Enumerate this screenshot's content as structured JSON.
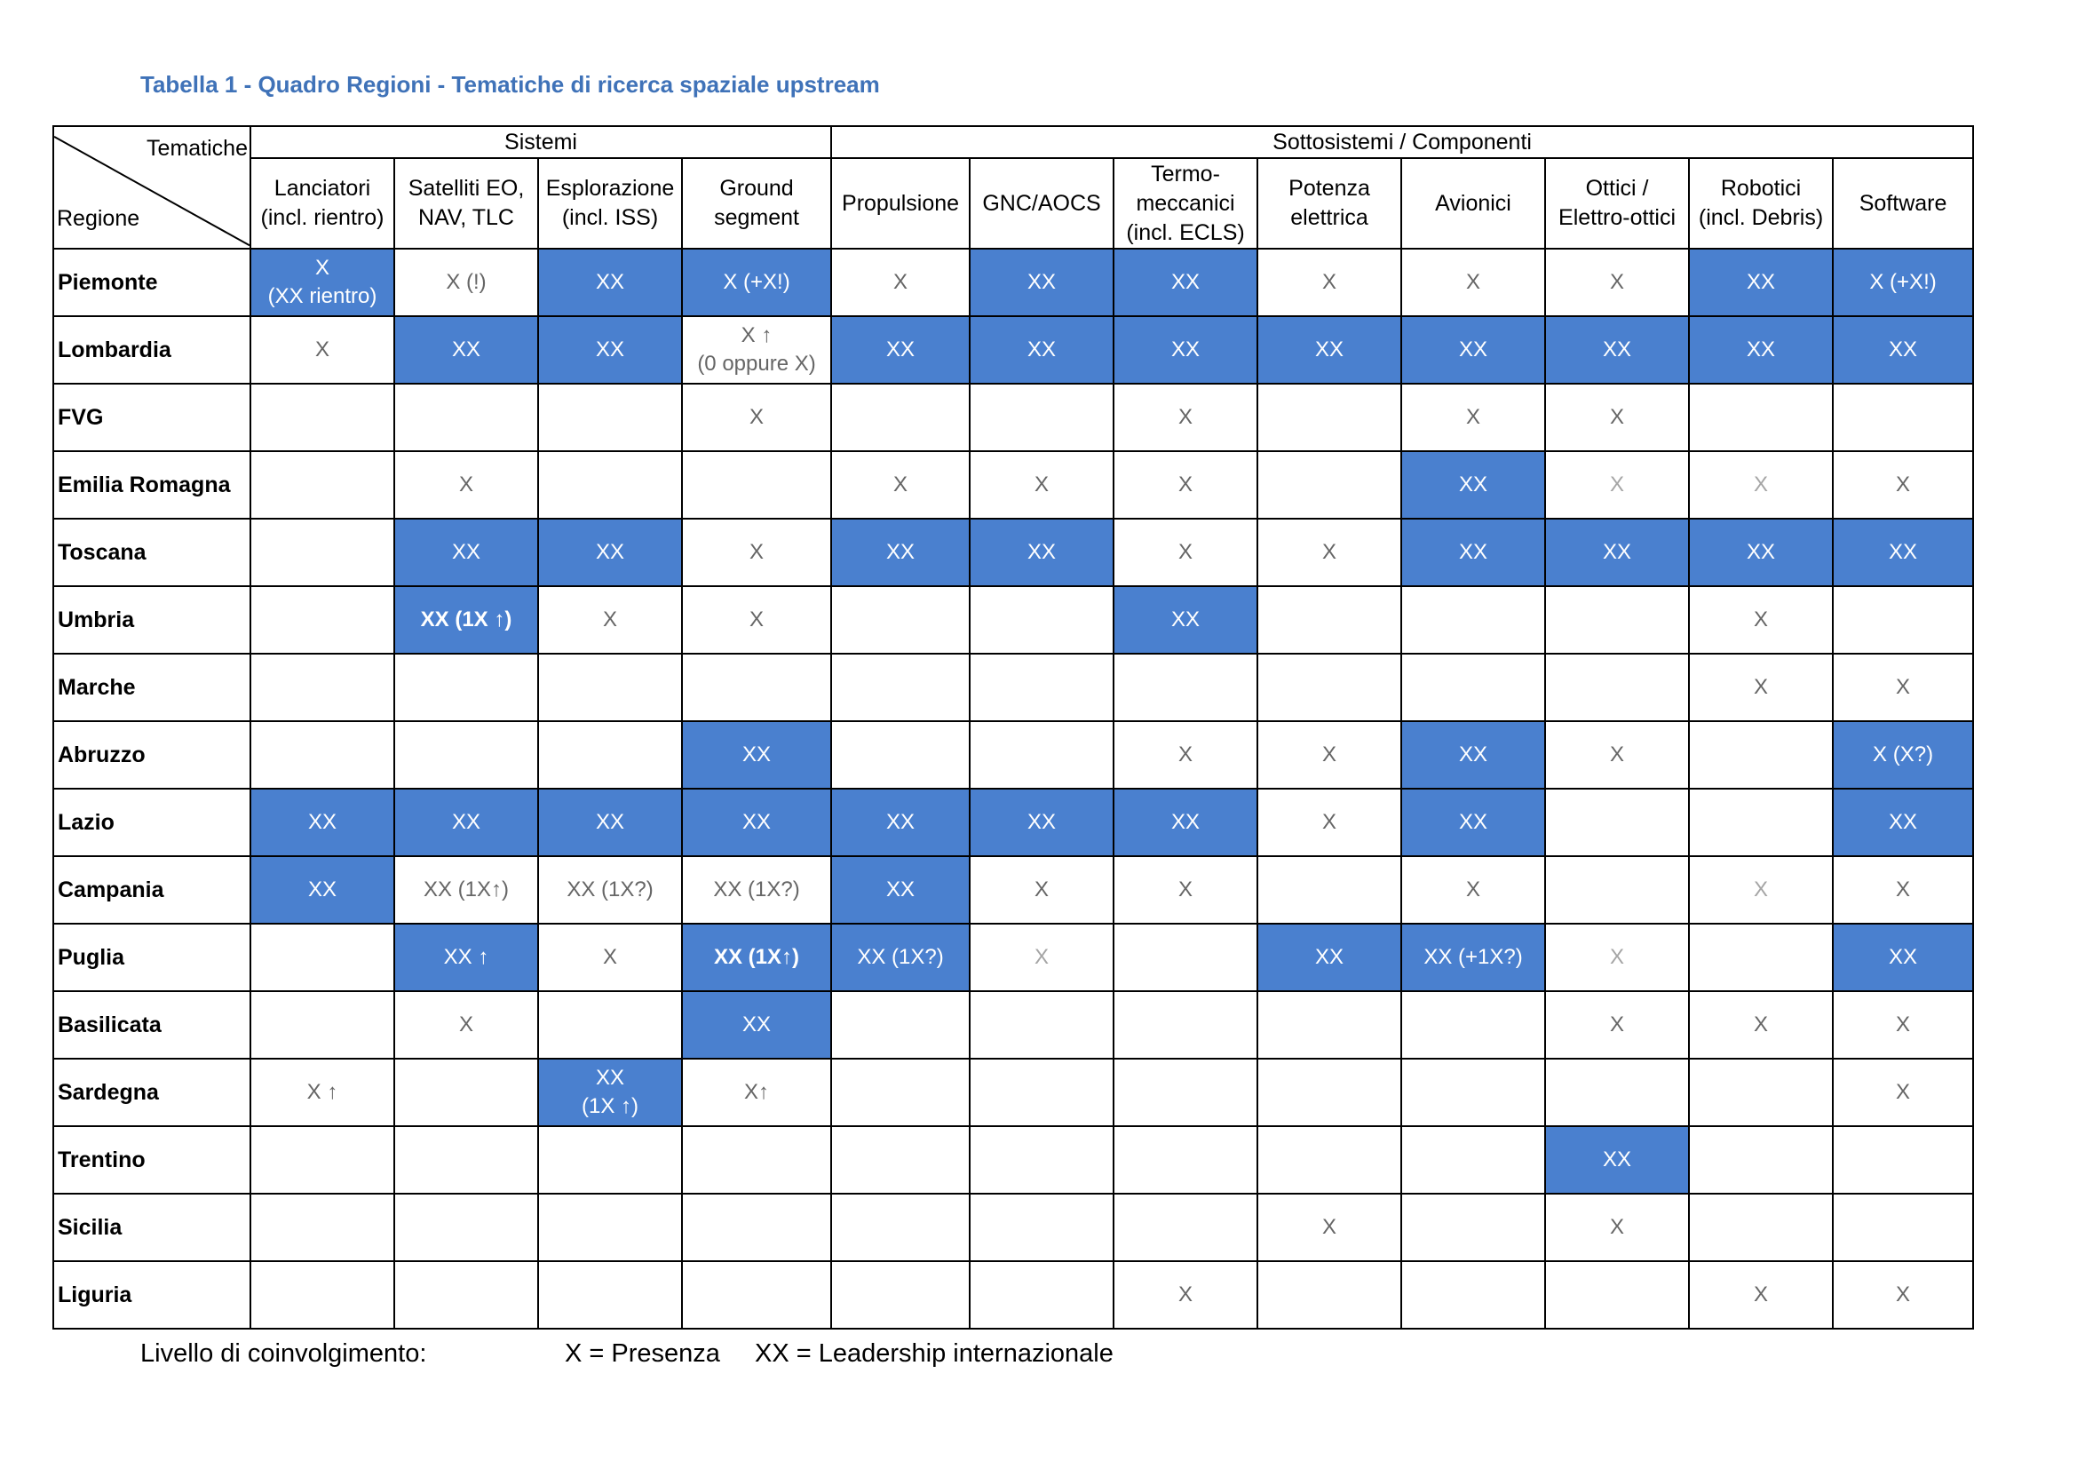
{
  "title": "Tabella 1 - Quadro Regioni - Tematiche di ricerca spaziale upstream",
  "corner": {
    "top": "Tematiche",
    "bottom": "Regione"
  },
  "groups": [
    {
      "label": "Sistemi",
      "span": 4
    },
    {
      "label": "Sottosistemi / Componenti",
      "span": 8
    }
  ],
  "columns": [
    [
      "Lanciatori",
      "(incl. rientro)"
    ],
    [
      "Satelliti EO,",
      "NAV, TLC"
    ],
    [
      "Esplorazione",
      "(incl. ISS)"
    ],
    [
      "Ground",
      "segment"
    ],
    [
      "Propulsione"
    ],
    [
      "GNC/AOCS"
    ],
    [
      "Termo-",
      "meccanici",
      "(incl. ECLS)"
    ],
    [
      "Potenza",
      "elettrica"
    ],
    [
      "Avionici"
    ],
    [
      "Ottici /",
      "Elettro-ottici"
    ],
    [
      "Robotici",
      "(incl. Debris)"
    ],
    [
      "Software"
    ]
  ],
  "highlight_color": "#4a80cf",
  "rows": [
    {
      "region": "Piemonte",
      "cells": [
        {
          "t": "X\n(XX rientro)",
          "h": 1
        },
        {
          "t": "X (!)"
        },
        {
          "t": "XX",
          "h": 1
        },
        {
          "t": "X (+X!)",
          "h": 1
        },
        {
          "t": "X"
        },
        {
          "t": "XX",
          "h": 1
        },
        {
          "t": "XX",
          "h": 1
        },
        {
          "t": "X"
        },
        {
          "t": "X"
        },
        {
          "t": "X"
        },
        {
          "t": "XX",
          "h": 1
        },
        {
          "t": "X (+X!)",
          "h": 1
        }
      ]
    },
    {
      "region": "Lombardia",
      "cells": [
        {
          "t": "X"
        },
        {
          "t": "XX",
          "h": 1
        },
        {
          "t": "XX",
          "h": 1
        },
        {
          "t": "X ↑\n(0 oppure X)"
        },
        {
          "t": "XX",
          "h": 1
        },
        {
          "t": "XX",
          "h": 1
        },
        {
          "t": "XX",
          "h": 1
        },
        {
          "t": "XX",
          "h": 1
        },
        {
          "t": "XX",
          "h": 1
        },
        {
          "t": "XX",
          "h": 1
        },
        {
          "t": "XX",
          "h": 1
        },
        {
          "t": "XX",
          "h": 1
        }
      ]
    },
    {
      "region": "FVG",
      "cells": [
        {
          "t": ""
        },
        {
          "t": ""
        },
        {
          "t": ""
        },
        {
          "t": "X"
        },
        {
          "t": ""
        },
        {
          "t": ""
        },
        {
          "t": "X"
        },
        {
          "t": ""
        },
        {
          "t": "X"
        },
        {
          "t": "X"
        },
        {
          "t": ""
        },
        {
          "t": ""
        }
      ]
    },
    {
      "region": "Emilia Romagna",
      "cells": [
        {
          "t": ""
        },
        {
          "t": "X"
        },
        {
          "t": ""
        },
        {
          "t": ""
        },
        {
          "t": "X"
        },
        {
          "t": "X"
        },
        {
          "t": "X"
        },
        {
          "t": ""
        },
        {
          "t": "XX",
          "h": 1
        },
        {
          "t": "X",
          "l": 1
        },
        {
          "t": "X",
          "l": 1
        },
        {
          "t": "X"
        }
      ]
    },
    {
      "region": "Toscana",
      "cells": [
        {
          "t": ""
        },
        {
          "t": "XX",
          "h": 1
        },
        {
          "t": "XX",
          "h": 1
        },
        {
          "t": "X"
        },
        {
          "t": "XX",
          "h": 1
        },
        {
          "t": "XX",
          "h": 1
        },
        {
          "t": "X"
        },
        {
          "t": "X"
        },
        {
          "t": "XX",
          "h": 1
        },
        {
          "t": "XX",
          "h": 1
        },
        {
          "t": "XX",
          "h": 1
        },
        {
          "t": "XX",
          "h": 1
        }
      ]
    },
    {
      "region": "Umbria",
      "cells": [
        {
          "t": ""
        },
        {
          "t": "XX (1X ↑)",
          "h": 1,
          "b": 1
        },
        {
          "t": "X"
        },
        {
          "t": "X"
        },
        {
          "t": ""
        },
        {
          "t": ""
        },
        {
          "t": "XX",
          "h": 1
        },
        {
          "t": ""
        },
        {
          "t": ""
        },
        {
          "t": ""
        },
        {
          "t": "X"
        },
        {
          "t": ""
        }
      ]
    },
    {
      "region": "Marche",
      "cells": [
        {
          "t": ""
        },
        {
          "t": ""
        },
        {
          "t": ""
        },
        {
          "t": ""
        },
        {
          "t": ""
        },
        {
          "t": ""
        },
        {
          "t": ""
        },
        {
          "t": ""
        },
        {
          "t": ""
        },
        {
          "t": ""
        },
        {
          "t": "X"
        },
        {
          "t": "X"
        }
      ]
    },
    {
      "region": "Abruzzo",
      "cells": [
        {
          "t": ""
        },
        {
          "t": ""
        },
        {
          "t": ""
        },
        {
          "t": "XX",
          "h": 1
        },
        {
          "t": ""
        },
        {
          "t": ""
        },
        {
          "t": "X"
        },
        {
          "t": "X"
        },
        {
          "t": "XX",
          "h": 1
        },
        {
          "t": "X"
        },
        {
          "t": ""
        },
        {
          "t": "X (X?)",
          "h": 1
        }
      ]
    },
    {
      "region": "Lazio",
      "cells": [
        {
          "t": "XX",
          "h": 1
        },
        {
          "t": "XX",
          "h": 1
        },
        {
          "t": "XX",
          "h": 1
        },
        {
          "t": "XX",
          "h": 1
        },
        {
          "t": "XX",
          "h": 1
        },
        {
          "t": "XX",
          "h": 1
        },
        {
          "t": "XX",
          "h": 1
        },
        {
          "t": "X"
        },
        {
          "t": "XX",
          "h": 1
        },
        {
          "t": ""
        },
        {
          "t": ""
        },
        {
          "t": "XX",
          "h": 1
        }
      ]
    },
    {
      "region": "Campania",
      "cells": [
        {
          "t": "XX",
          "h": 1
        },
        {
          "t": "XX (1X↑)"
        },
        {
          "t": "XX (1X?)"
        },
        {
          "t": "XX (1X?)"
        },
        {
          "t": "XX",
          "h": 1
        },
        {
          "t": "X"
        },
        {
          "t": "X"
        },
        {
          "t": ""
        },
        {
          "t": "X"
        },
        {
          "t": ""
        },
        {
          "t": "X",
          "l": 1
        },
        {
          "t": "X"
        }
      ]
    },
    {
      "region": "Puglia",
      "cells": [
        {
          "t": ""
        },
        {
          "t": "XX ↑",
          "h": 1
        },
        {
          "t": "X"
        },
        {
          "t": "XX (1X↑)",
          "h": 1,
          "b": 1
        },
        {
          "t": "XX (1X?)",
          "h": 1
        },
        {
          "t": "X",
          "l": 1
        },
        {
          "t": ""
        },
        {
          "t": "XX",
          "h": 1
        },
        {
          "t": "XX (+1X?)",
          "h": 1
        },
        {
          "t": "X",
          "l": 1
        },
        {
          "t": ""
        },
        {
          "t": "XX",
          "h": 1
        }
      ]
    },
    {
      "region": "Basilicata",
      "cells": [
        {
          "t": ""
        },
        {
          "t": "X"
        },
        {
          "t": ""
        },
        {
          "t": "XX",
          "h": 1
        },
        {
          "t": ""
        },
        {
          "t": ""
        },
        {
          "t": ""
        },
        {
          "t": ""
        },
        {
          "t": ""
        },
        {
          "t": "X"
        },
        {
          "t": "X"
        },
        {
          "t": "X"
        }
      ]
    },
    {
      "region": "Sardegna",
      "cells": [
        {
          "t": "X ↑"
        },
        {
          "t": ""
        },
        {
          "t": "XX\n(1X ↑)",
          "h": 1
        },
        {
          "t": "X↑"
        },
        {
          "t": ""
        },
        {
          "t": ""
        },
        {
          "t": ""
        },
        {
          "t": ""
        },
        {
          "t": ""
        },
        {
          "t": ""
        },
        {
          "t": ""
        },
        {
          "t": "X"
        }
      ]
    },
    {
      "region": "Trentino",
      "cells": [
        {
          "t": ""
        },
        {
          "t": ""
        },
        {
          "t": ""
        },
        {
          "t": ""
        },
        {
          "t": ""
        },
        {
          "t": ""
        },
        {
          "t": ""
        },
        {
          "t": ""
        },
        {
          "t": ""
        },
        {
          "t": "XX",
          "h": 1
        },
        {
          "t": ""
        },
        {
          "t": ""
        }
      ]
    },
    {
      "region": "Sicilia",
      "cells": [
        {
          "t": ""
        },
        {
          "t": ""
        },
        {
          "t": ""
        },
        {
          "t": ""
        },
        {
          "t": ""
        },
        {
          "t": ""
        },
        {
          "t": ""
        },
        {
          "t": "X"
        },
        {
          "t": ""
        },
        {
          "t": "X"
        },
        {
          "t": ""
        },
        {
          "t": ""
        }
      ]
    },
    {
      "region": "Liguria",
      "cells": [
        {
          "t": ""
        },
        {
          "t": ""
        },
        {
          "t": ""
        },
        {
          "t": ""
        },
        {
          "t": ""
        },
        {
          "t": ""
        },
        {
          "t": "X"
        },
        {
          "t": ""
        },
        {
          "t": ""
        },
        {
          "t": ""
        },
        {
          "t": "X"
        },
        {
          "t": "X"
        }
      ]
    }
  ],
  "legend": {
    "label": "Livello di coinvolgimento:",
    "x": "X = Presenza",
    "xx": "XX = Leadership internazionale"
  }
}
